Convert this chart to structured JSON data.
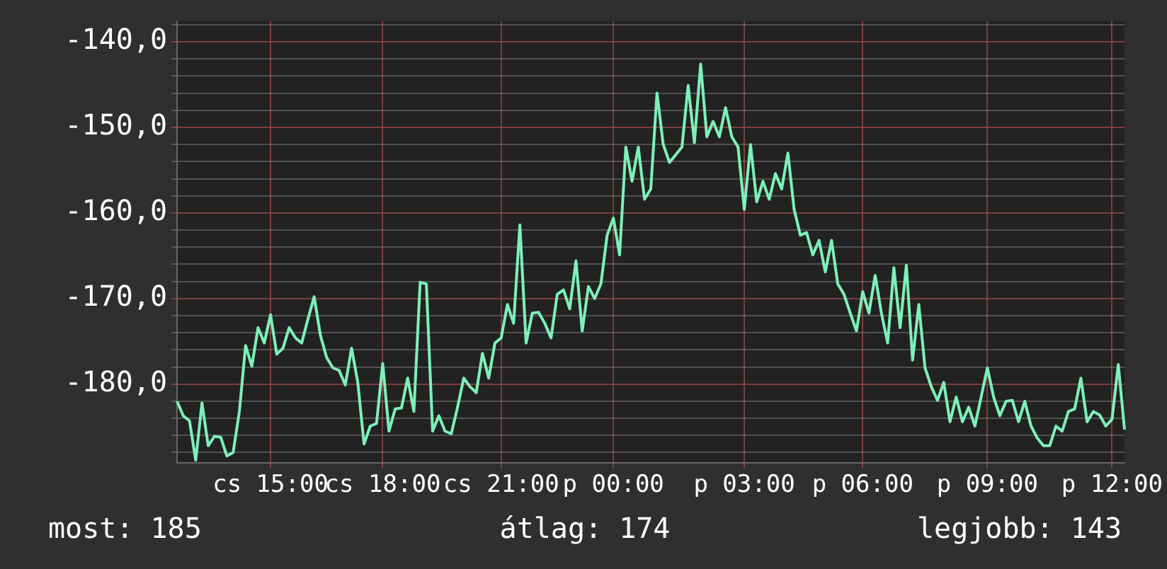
{
  "chart_data": {
    "type": "line",
    "color": "#7df0b8",
    "grid": true,
    "marker": "none",
    "line_style": "solid",
    "legend": false,
    "ylim": [
      -189.2,
      -137.6
    ],
    "yticks": [
      {
        "value": -188,
        "label": null
      },
      {
        "value": -186,
        "label": null
      },
      {
        "value": -184,
        "label": null
      },
      {
        "value": -182,
        "label": null
      },
      {
        "value": -180,
        "label": "-180,0"
      },
      {
        "value": -178,
        "label": null
      },
      {
        "value": -176,
        "label": null
      },
      {
        "value": -174,
        "label": null
      },
      {
        "value": -172,
        "label": null
      },
      {
        "value": -170,
        "label": "-170,0"
      },
      {
        "value": -168,
        "label": null
      },
      {
        "value": -166,
        "label": null
      },
      {
        "value": -164,
        "label": null
      },
      {
        "value": -162,
        "label": null
      },
      {
        "value": -160,
        "label": "-160,0"
      },
      {
        "value": -158,
        "label": null
      },
      {
        "value": -156,
        "label": null
      },
      {
        "value": -154,
        "label": null
      },
      {
        "value": -152,
        "label": null
      },
      {
        "value": -150,
        "label": "-150,0"
      },
      {
        "value": -148,
        "label": null
      },
      {
        "value": -146,
        "label": null
      },
      {
        "value": -144,
        "label": null
      },
      {
        "value": -142,
        "label": null
      },
      {
        "value": -140,
        "label": "-140,0"
      },
      {
        "value": -138,
        "label": null
      }
    ],
    "annotations": [
      "most: 185",
      "átlag: 174",
      "legjobb: 143"
    ],
    "categories": [
      null,
      null,
      null,
      null,
      null,
      null,
      null,
      null,
      null,
      null,
      null,
      null,
      null,
      null,
      null,
      "cs 15:00",
      null,
      null,
      null,
      null,
      null,
      null,
      null,
      null,
      null,
      null,
      null,
      null,
      null,
      null,
      null,
      null,
      null,
      "cs 18:00",
      null,
      null,
      null,
      null,
      null,
      null,
      null,
      null,
      null,
      null,
      null,
      null,
      null,
      null,
      null,
      null,
      null,
      null,
      "cs 21:00",
      null,
      null,
      null,
      null,
      null,
      null,
      null,
      null,
      null,
      null,
      null,
      null,
      null,
      null,
      null,
      null,
      null,
      "p 00:00",
      null,
      null,
      null,
      null,
      null,
      null,
      null,
      null,
      null,
      null,
      null,
      null,
      null,
      null,
      null,
      null,
      null,
      null,
      null,
      null,
      "p 03:00",
      null,
      null,
      null,
      null,
      null,
      null,
      null,
      null,
      null,
      null,
      null,
      null,
      null,
      null,
      null,
      null,
      null,
      null,
      "p 06:00",
      null,
      null,
      null,
      null,
      null,
      null,
      null,
      null,
      null,
      null,
      null,
      null,
      null,
      null,
      null,
      null,
      null,
      null,
      null,
      "p 09:00",
      null,
      null,
      null,
      null,
      null,
      null,
      null,
      null,
      null,
      null,
      null,
      null,
      null,
      null,
      null,
      null,
      null,
      null,
      null,
      "p 12:00",
      null,
      null
    ],
    "values": [
      -182.0,
      -183.7,
      -184.3,
      -188.9,
      -182.2,
      -187.2,
      -186.1,
      -186.2,
      -188.4,
      -188.0,
      -183.2,
      -175.5,
      -177.9,
      -173.4,
      -175.2,
      -171.9,
      -176.5,
      -175.8,
      -173.4,
      -174.6,
      -175.2,
      -172.4,
      -169.8,
      -174.3,
      -176.9,
      -178.1,
      -178.4,
      -180.1,
      -175.8,
      -179.8,
      -187.0,
      -184.9,
      -184.6,
      -177.6,
      -185.5,
      -182.9,
      -182.8,
      -179.3,
      -183.2,
      -168.1,
      -168.3,
      -185.5,
      -183.7,
      -185.5,
      -185.8,
      -182.7,
      -179.3,
      -180.3,
      -181.0,
      -176.4,
      -179.3,
      -175.2,
      -174.6,
      -170.7,
      -172.9,
      -161.4,
      -175.2,
      -171.7,
      -171.6,
      -172.9,
      -174.6,
      -169.5,
      -169.0,
      -171.2,
      -165.6,
      -173.8,
      -168.6,
      -170.0,
      -168.3,
      -162.6,
      -160.6,
      -164.9,
      -152.3,
      -156.3,
      -152.3,
      -158.4,
      -157.2,
      -146.0,
      -152.0,
      -154.1,
      -153.2,
      -152.3,
      -145.1,
      -151.8,
      -142.6,
      -151.1,
      -149.3,
      -151.1,
      -147.7,
      -151.1,
      -152.3,
      -159.6,
      -152.0,
      -158.7,
      -156.3,
      -158.4,
      -155.4,
      -157.2,
      -153.0,
      -159.6,
      -162.6,
      -162.3,
      -164.9,
      -163.2,
      -166.9,
      -163.2,
      -168.3,
      -169.5,
      -171.7,
      -173.8,
      -169.2,
      -171.7,
      -167.3,
      -171.7,
      -175.2,
      -166.4,
      -173.4,
      -166.1,
      -177.2,
      -170.7,
      -178.1,
      -180.3,
      -181.9,
      -179.8,
      -184.4,
      -181.5,
      -184.4,
      -182.7,
      -184.9,
      -181.5,
      -178.1,
      -181.5,
      -183.7,
      -182.0,
      -181.9,
      -184.4,
      -182.0,
      -184.9,
      -186.3,
      -187.2,
      -187.2,
      -184.9,
      -185.5,
      -183.2,
      -182.9,
      -179.3,
      -184.4,
      -183.2,
      -183.6,
      -184.9,
      -184.1,
      -177.7,
      -185.3
    ]
  }
}
